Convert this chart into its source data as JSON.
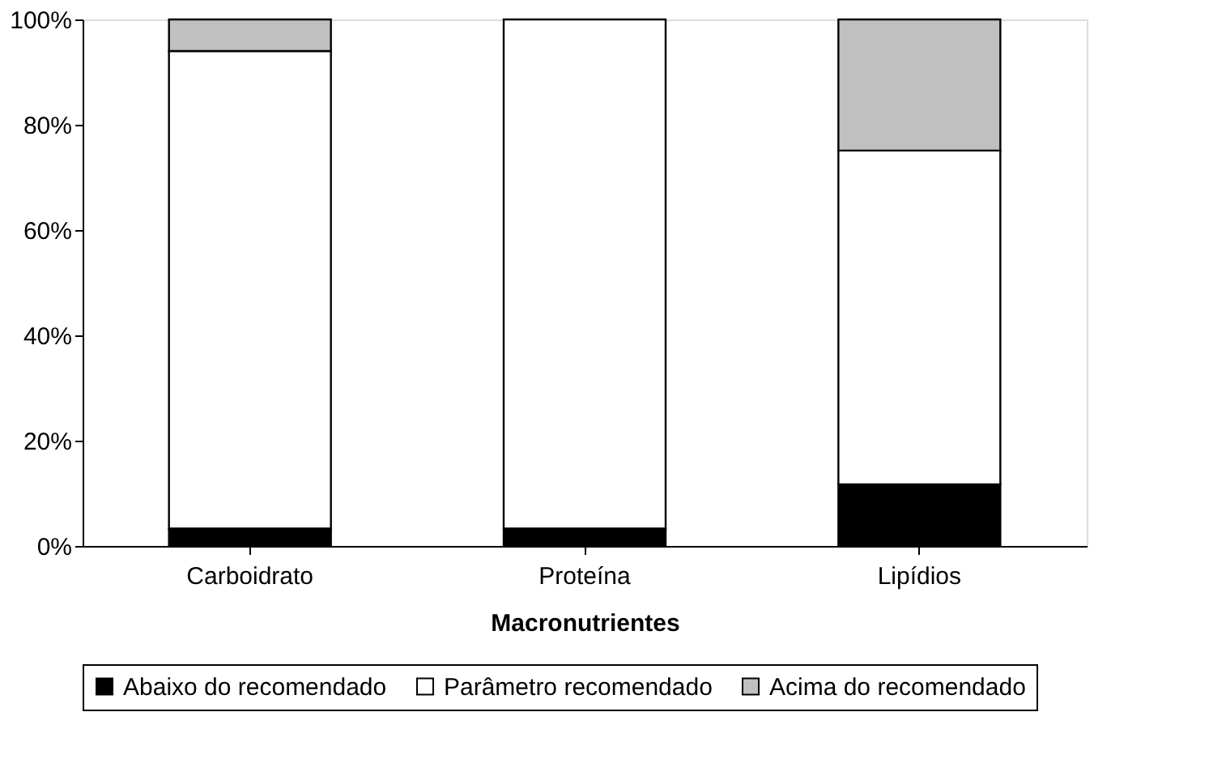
{
  "chart_data": {
    "type": "bar",
    "stacked": true,
    "xlabel": "Macronutrientes",
    "categories": [
      "Carboidrato",
      "Proteína",
      "Lipídios"
    ],
    "series": [
      {
        "name": "Abaixo do recomendado",
        "color": "#000000",
        "values": [
          3.3,
          3.3,
          11.7
        ]
      },
      {
        "name": "Parâmetro recomendado",
        "color": "#ffffff",
        "values": [
          90.7,
          96.7,
          63.4
        ]
      },
      {
        "name": "Acima do recomendado",
        "color": "#c0c0c0",
        "values": [
          6,
          0,
          24.9
        ]
      }
    ],
    "ylim": [
      0,
      100
    ],
    "yticks": [
      {
        "value": 0,
        "label": "0%"
      },
      {
        "value": 20,
        "label": "20%"
      },
      {
        "value": 40,
        "label": "40%"
      },
      {
        "value": 60,
        "label": "60%"
      },
      {
        "value": 80,
        "label": "80%"
      },
      {
        "value": 100,
        "label": "100%"
      }
    ],
    "grid": false,
    "legend": "bottom"
  }
}
